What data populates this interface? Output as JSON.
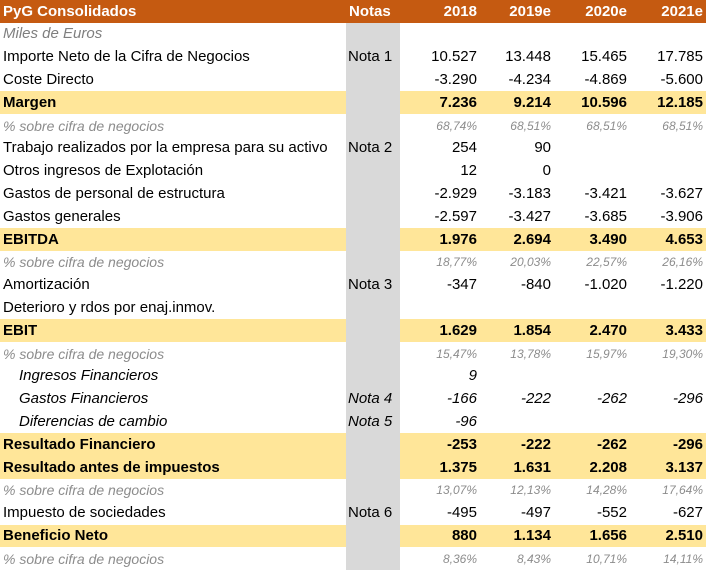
{
  "header": {
    "title": "PyG Consolidados",
    "notas": "Notas",
    "years": [
      "2018",
      "2019e",
      "2020e",
      "2021e"
    ]
  },
  "rows": [
    {
      "type": "unit",
      "label": "Miles de Euros",
      "nota": "",
      "values": [
        "",
        "",
        "",
        ""
      ]
    },
    {
      "type": "normal",
      "label": "Importe Neto de la Cifra de Negocios",
      "nota": "Nota 1",
      "values": [
        "10.527",
        "13.448",
        "15.465",
        "17.785"
      ]
    },
    {
      "type": "normal",
      "label": "Coste Directo",
      "nota": "",
      "values": [
        "-3.290",
        "-4.234",
        "-4.869",
        "-5.600"
      ]
    },
    {
      "type": "hl",
      "label": "Margen",
      "nota": "",
      "values": [
        "7.236",
        "9.214",
        "10.596",
        "12.185"
      ]
    },
    {
      "type": "pct",
      "label": "% sobre cifra de negocios",
      "nota": "",
      "values": [
        "68,74%",
        "68,51%",
        "68,51%",
        "68,51%"
      ]
    },
    {
      "type": "normal",
      "label": "Trabajo realizados por la empresa para su activo",
      "nota": "Nota 2",
      "values": [
        "254",
        "90",
        "",
        ""
      ]
    },
    {
      "type": "normal",
      "label": "Otros ingresos de Explotación",
      "nota": "",
      "values": [
        "12",
        "0",
        "",
        ""
      ]
    },
    {
      "type": "normal",
      "label": "Gastos de personal de estructura",
      "nota": "",
      "values": [
        "-2.929",
        "-3.183",
        "-3.421",
        "-3.627"
      ]
    },
    {
      "type": "normal",
      "label": "Gastos generales",
      "nota": "",
      "values": [
        "-2.597",
        "-3.427",
        "-3.685",
        "-3.906"
      ]
    },
    {
      "type": "hl",
      "label": "EBITDA",
      "nota": "",
      "values": [
        "1.976",
        "2.694",
        "3.490",
        "4.653"
      ]
    },
    {
      "type": "pct",
      "label": "% sobre cifra de negocios",
      "nota": "",
      "values": [
        "18,77%",
        "20,03%",
        "22,57%",
        "26,16%"
      ]
    },
    {
      "type": "normal",
      "label": "Amortización",
      "nota": "Nota 3",
      "values": [
        "-347",
        "-840",
        "-1.020",
        "-1.220"
      ]
    },
    {
      "type": "normal",
      "label": "Deterioro y rdos por enaj.inmov.",
      "nota": "",
      "values": [
        "",
        "",
        "",
        ""
      ]
    },
    {
      "type": "hl",
      "label": "EBIT",
      "nota": "",
      "values": [
        "1.629",
        "1.854",
        "2.470",
        "3.433"
      ]
    },
    {
      "type": "pct",
      "label": "% sobre cifra de negocios",
      "nota": "",
      "values": [
        "15,47%",
        "13,78%",
        "15,97%",
        "19,30%"
      ]
    },
    {
      "type": "sub",
      "label": "Ingresos Financieros",
      "nota": "",
      "values": [
        "9",
        "",
        "",
        ""
      ]
    },
    {
      "type": "sub",
      "label": "Gastos Financieros",
      "nota": "Nota 4",
      "values": [
        "-166",
        "-222",
        "-262",
        "-296"
      ]
    },
    {
      "type": "sub",
      "label": "Diferencias de cambio",
      "nota": "Nota 5",
      "values": [
        "-96",
        "",
        "",
        ""
      ]
    },
    {
      "type": "hl",
      "label": "Resultado Financiero",
      "nota": "",
      "values": [
        "-253",
        "-222",
        "-262",
        "-296"
      ]
    },
    {
      "type": "hl",
      "label": "Resultado antes de impuestos",
      "nota": "",
      "values": [
        "1.375",
        "1.631",
        "2.208",
        "3.137"
      ]
    },
    {
      "type": "pct",
      "label": "% sobre cifra de negocios",
      "nota": "",
      "values": [
        "13,07%",
        "12,13%",
        "14,28%",
        "17,64%"
      ]
    },
    {
      "type": "normal",
      "label": "Impuesto de sociedades",
      "nota": "Nota 6",
      "values": [
        "-495",
        "-497",
        "-552",
        "-627"
      ]
    },
    {
      "type": "hl",
      "label": "Beneficio Neto",
      "nota": "",
      "values": [
        "880",
        "1.134",
        "1.656",
        "2.510"
      ]
    },
    {
      "type": "pct",
      "label": "% sobre cifra de negocios",
      "nota": "",
      "values": [
        "8,36%",
        "8,43%",
        "10,71%",
        "14,11%"
      ]
    }
  ]
}
